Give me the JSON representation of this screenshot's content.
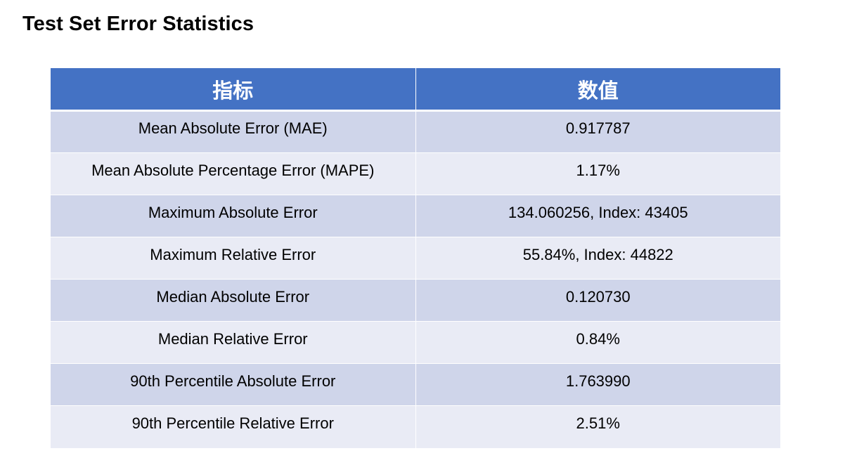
{
  "title": "Test Set Error Statistics",
  "table": {
    "headers": [
      "指标",
      "数值"
    ],
    "rows": [
      {
        "metric": "Mean Absolute Error (MAE)",
        "value": "0.917787"
      },
      {
        "metric": "Mean Absolute Percentage Error (MAPE)",
        "value": "1.17%"
      },
      {
        "metric": "Maximum Absolute Error",
        "value": "134.060256, Index: 43405"
      },
      {
        "metric": "Maximum Relative Error",
        "value": "55.84%, Index: 44822"
      },
      {
        "metric": "Median Absolute Error",
        "value": "0.120730"
      },
      {
        "metric": "Median Relative Error",
        "value": "0.84%"
      },
      {
        "metric": "90th Percentile Absolute Error",
        "value": "1.763990"
      },
      {
        "metric": "90th Percentile Relative Error",
        "value": "2.51%"
      }
    ]
  },
  "colors": {
    "header_bg": "#4472c4",
    "row_odd_bg": "#cfd5ea",
    "row_even_bg": "#e9ebf5"
  }
}
